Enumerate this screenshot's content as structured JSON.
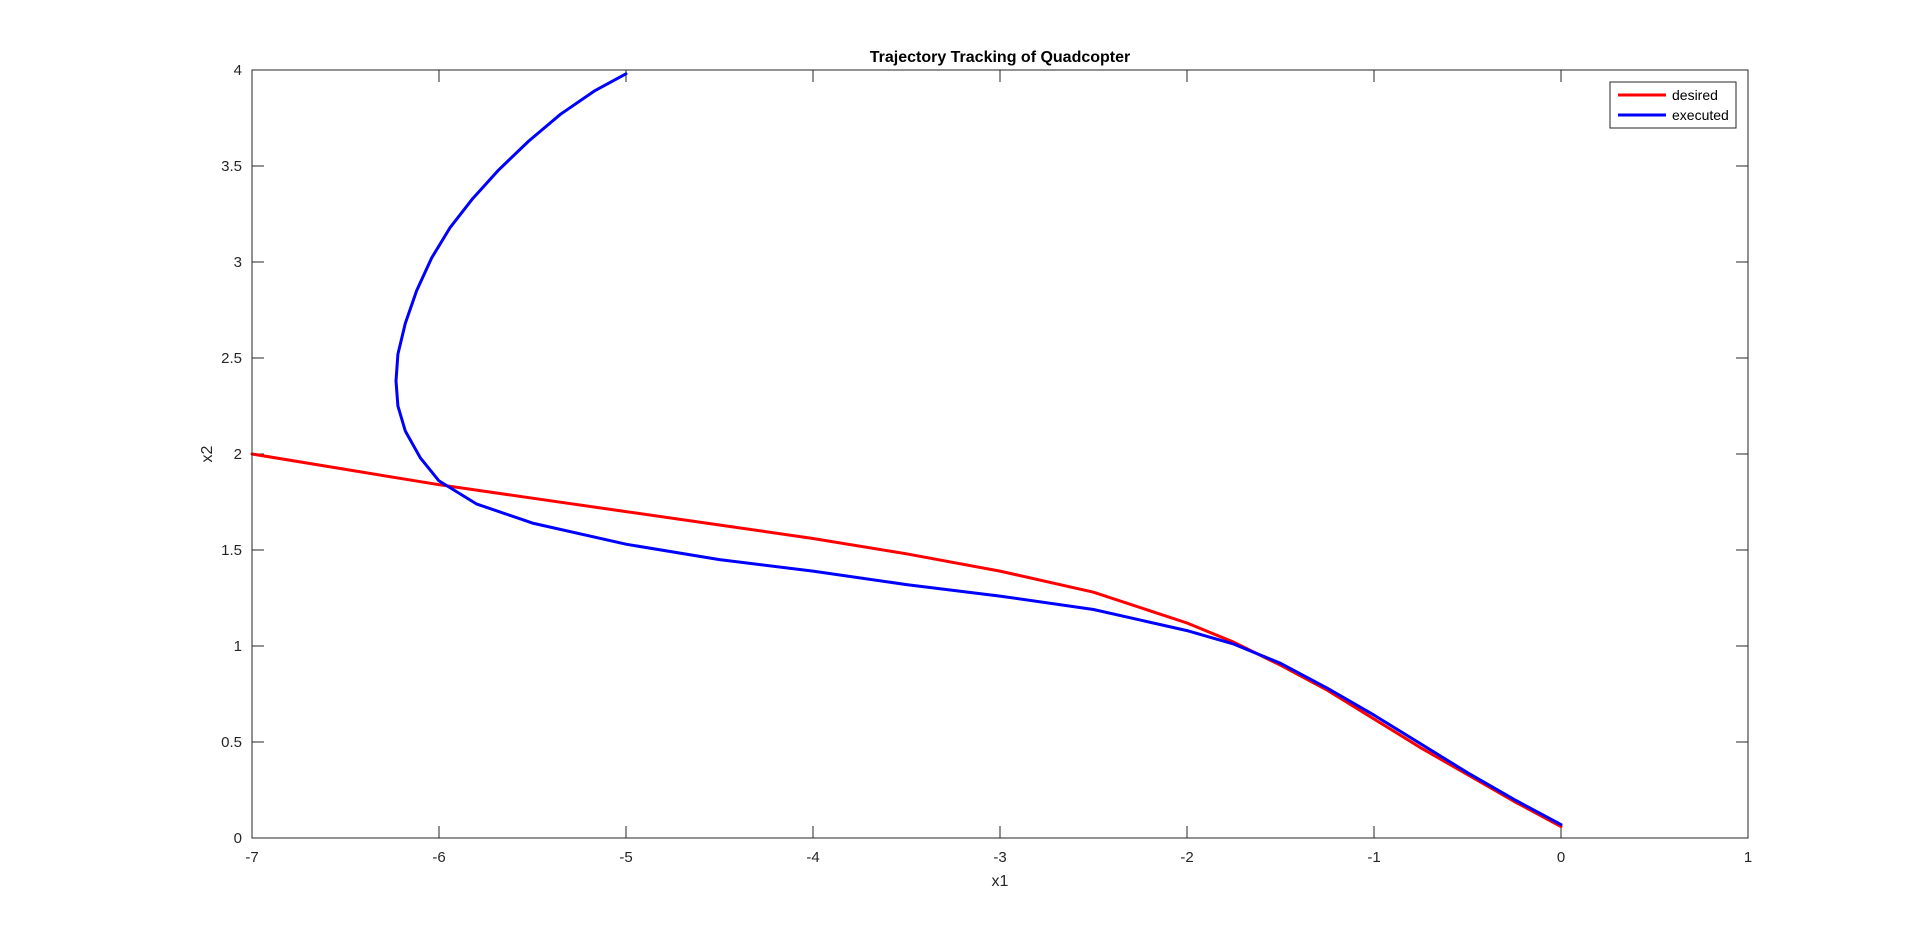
{
  "chart_data": {
    "type": "line",
    "title": "Trajectory Tracking of Quadcopter",
    "xlabel": "x1",
    "ylabel": "x2",
    "xlim": [
      -7,
      1
    ],
    "ylim": [
      0,
      4
    ],
    "xticks": [
      -7,
      -6,
      -5,
      -4,
      -3,
      -2,
      -1,
      0,
      1
    ],
    "yticks": [
      0,
      0.5,
      1,
      1.5,
      2,
      2.5,
      3,
      3.5,
      4
    ],
    "xtick_labels": [
      "-7",
      "-6",
      "-5",
      "-4",
      "-3",
      "-2",
      "-1",
      "0",
      "1"
    ],
    "ytick_labels": [
      "0",
      "0.5",
      "1",
      "1.5",
      "2",
      "2.5",
      "3",
      "3.5",
      "4"
    ],
    "grid": false,
    "legend_position": "top-right",
    "series": [
      {
        "name": "desired",
        "color": "#ff0000",
        "x": [
          -7,
          -6.5,
          -6,
          -5.5,
          -5,
          -4.5,
          -4,
          -3.5,
          -3,
          -2.5,
          -2,
          -1.75,
          -1.5,
          -1.25,
          -1,
          -0.75,
          -0.5,
          -0.25,
          0
        ],
        "y": [
          2.0,
          1.92,
          1.84,
          1.77,
          1.7,
          1.63,
          1.56,
          1.48,
          1.39,
          1.28,
          1.12,
          1.02,
          0.9,
          0.77,
          0.62,
          0.47,
          0.33,
          0.19,
          0.06
        ]
      },
      {
        "name": "executed",
        "color": "#0000ff",
        "x": [
          0,
          -0.25,
          -0.5,
          -0.75,
          -1,
          -1.25,
          -1.5,
          -1.75,
          -2,
          -2.5,
          -3,
          -3.5,
          -4,
          -4.5,
          -5,
          -5.5,
          -5.8,
          -6.0,
          -6.1,
          -6.18,
          -6.22,
          -6.23,
          -6.22,
          -6.18,
          -6.12,
          -6.04,
          -5.94,
          -5.82,
          -5.68,
          -5.52,
          -5.35,
          -5.17,
          -5.0
        ],
        "y": [
          0.07,
          0.2,
          0.34,
          0.49,
          0.64,
          0.78,
          0.91,
          1.01,
          1.08,
          1.19,
          1.26,
          1.32,
          1.39,
          1.45,
          1.53,
          1.64,
          1.74,
          1.86,
          1.98,
          2.12,
          2.25,
          2.38,
          2.52,
          2.68,
          2.85,
          3.02,
          3.18,
          3.33,
          3.48,
          3.63,
          3.77,
          3.89,
          3.98
        ]
      }
    ]
  }
}
